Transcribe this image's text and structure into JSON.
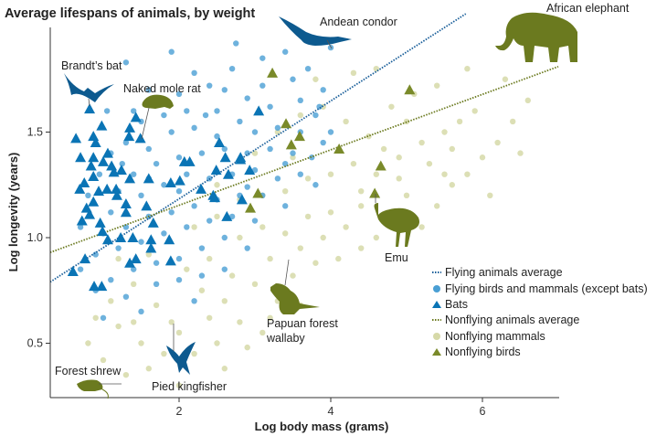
{
  "chart_data": {
    "type": "scatter",
    "title": "Average lifespans of animals, by weight",
    "xlabel": "Log body mass (grams)",
    "ylabel": "Log longevity (years)",
    "xlim": [
      0.3,
      7.0
    ],
    "ylim": [
      0.24,
      2.0
    ],
    "x_ticks": [
      "2",
      "4",
      "6"
    ],
    "x_tick_values": [
      2,
      4,
      6
    ],
    "y_ticks": [
      "0.5",
      "1.0",
      "1.5"
    ],
    "y_tick_values": [
      0.5,
      1.0,
      1.5
    ],
    "grid": false,
    "legend_position": "right",
    "colors": {
      "flying_dot": "#4a9fd4",
      "bat": "#0a74b5",
      "flying_line": "#1a5f9a",
      "nonflying_dot": "#d6d9a8",
      "nonflying_bird": "#7a8a2a",
      "nonflying_line": "#6b7a1f",
      "silhouette_blue": "#0d5a8f",
      "silhouette_olive": "#6b7a1f"
    },
    "lines": [
      {
        "name": "Flying animals average",
        "x": [
          0.3,
          5.78
        ],
        "y": [
          0.79,
          2.06
        ]
      },
      {
        "name": "Nonflying animals average",
        "x": [
          0.3,
          7.0
        ],
        "y": [
          0.93,
          1.81
        ]
      }
    ],
    "series": [
      {
        "name": "Flying birds and mammals (except bats)",
        "marker": "circle",
        "points": [
          [
            1.3,
            1.83
          ],
          [
            1.6,
            1.7
          ],
          [
            1.9,
            1.88
          ],
          [
            2.2,
            1.78
          ],
          [
            2.4,
            1.72
          ],
          [
            2.7,
            1.8
          ],
          [
            3.1,
            1.85
          ],
          [
            3.4,
            1.88
          ],
          [
            3.7,
            1.8
          ],
          [
            3.9,
            1.7
          ],
          [
            3.6,
            1.65
          ],
          [
            3.2,
            1.62
          ],
          [
            2.9,
            1.66
          ],
          [
            2.5,
            1.6
          ],
          [
            2.1,
            1.6
          ],
          [
            1.8,
            1.58
          ],
          [
            1.5,
            1.55
          ],
          [
            1.3,
            1.45
          ],
          [
            1.6,
            1.42
          ],
          [
            1.9,
            1.5
          ],
          [
            2.2,
            1.52
          ],
          [
            2.5,
            1.48
          ],
          [
            2.8,
            1.55
          ],
          [
            3.0,
            1.5
          ],
          [
            3.3,
            1.52
          ],
          [
            3.6,
            1.5
          ],
          [
            3.8,
            1.58
          ],
          [
            3.9,
            1.45
          ],
          [
            3.5,
            1.4
          ],
          [
            3.2,
            1.42
          ],
          [
            2.9,
            1.4
          ],
          [
            2.6,
            1.42
          ],
          [
            2.3,
            1.4
          ],
          [
            2.0,
            1.38
          ],
          [
            1.7,
            1.35
          ],
          [
            1.4,
            1.3
          ],
          [
            1.2,
            1.22
          ],
          [
            1.5,
            1.2
          ],
          [
            1.8,
            1.25
          ],
          [
            2.1,
            1.3
          ],
          [
            2.4,
            1.28
          ],
          [
            2.7,
            1.3
          ],
          [
            3.0,
            1.32
          ],
          [
            3.3,
            1.28
          ],
          [
            3.6,
            1.3
          ],
          [
            3.1,
            1.2
          ],
          [
            2.8,
            1.2
          ],
          [
            2.5,
            1.18
          ],
          [
            2.2,
            1.15
          ],
          [
            1.9,
            1.12
          ],
          [
            1.6,
            1.1
          ],
          [
            1.3,
            1.05
          ],
          [
            1.0,
            1.02
          ],
          [
            0.9,
            0.92
          ],
          [
            1.2,
            0.95
          ],
          [
            1.5,
            0.98
          ],
          [
            1.8,
            1.02
          ],
          [
            2.1,
            1.05
          ],
          [
            2.4,
            1.08
          ],
          [
            2.7,
            1.1
          ],
          [
            3.0,
            1.08
          ],
          [
            3.4,
            1.15
          ],
          [
            3.8,
            1.25
          ],
          [
            2.6,
            1.0
          ],
          [
            2.3,
            0.95
          ],
          [
            2.0,
            0.9
          ],
          [
            1.7,
            0.88
          ],
          [
            1.4,
            0.85
          ],
          [
            1.1,
            0.8
          ],
          [
            0.9,
            0.75
          ],
          [
            1.3,
            0.72
          ],
          [
            1.7,
            0.78
          ],
          [
            2.0,
            0.8
          ],
          [
            2.3,
            0.82
          ],
          [
            2.6,
            0.85
          ],
          [
            2.9,
            0.95
          ],
          [
            1.0,
            0.62
          ],
          [
            1.5,
            0.65
          ],
          [
            2.2,
            0.7
          ],
          [
            1.1,
            1.12
          ],
          [
            0.7,
            1.05
          ],
          [
            0.8,
            1.2
          ],
          [
            0.7,
            0.85
          ],
          [
            2.0,
            1.68
          ],
          [
            2.6,
            1.7
          ],
          [
            3.5,
            1.75
          ],
          [
            3.85,
            1.62
          ],
          [
            4.0,
            1.5
          ],
          [
            3.75,
            1.38
          ],
          [
            1.4,
            1.6
          ],
          [
            1.1,
            1.4
          ],
          [
            1.05,
            1.6
          ],
          [
            2.35,
            1.58
          ],
          [
            2.9,
            1.24
          ],
          [
            3.4,
            1.35
          ],
          [
            1.6,
            1.28
          ],
          [
            1.25,
            1.35
          ],
          [
            2.0,
            1.22
          ],
          [
            0.95,
            1.3
          ],
          [
            3.1,
            1.72
          ],
          [
            2.75,
            1.92
          ],
          [
            4.0,
            1.9
          ]
        ]
      },
      {
        "name": "Bats",
        "marker": "triangle",
        "points": [
          [
            0.82,
            1.61
          ],
          [
            0.98,
            1.53
          ],
          [
            0.64,
            1.47
          ],
          [
            0.87,
            1.48
          ],
          [
            0.9,
            1.45
          ],
          [
            1.43,
            1.57
          ],
          [
            1.35,
            1.52
          ],
          [
            1.34,
            1.48
          ],
          [
            1.49,
            1.47
          ],
          [
            0.7,
            1.38
          ],
          [
            0.87,
            1.38
          ],
          [
            1.06,
            1.4
          ],
          [
            1.0,
            1.36
          ],
          [
            0.84,
            1.34
          ],
          [
            1.11,
            1.34
          ],
          [
            1.24,
            1.32
          ],
          [
            1.14,
            1.31
          ],
          [
            0.87,
            1.29
          ],
          [
            0.75,
            1.26
          ],
          [
            1.35,
            1.28
          ],
          [
            1.6,
            1.28
          ],
          [
            0.69,
            1.23
          ],
          [
            0.94,
            1.22
          ],
          [
            1.05,
            1.23
          ],
          [
            1.17,
            1.23
          ],
          [
            1.18,
            1.2
          ],
          [
            1.89,
            1.26
          ],
          [
            2.01,
            1.27
          ],
          [
            0.87,
            1.17
          ],
          [
            1.3,
            1.16
          ],
          [
            0.78,
            1.14
          ],
          [
            1.57,
            1.15
          ],
          [
            0.82,
            1.11
          ],
          [
            0.72,
            1.08
          ],
          [
            1.3,
            1.12
          ],
          [
            0.96,
            1.07
          ],
          [
            1.66,
            1.07
          ],
          [
            0.99,
            1.03
          ],
          [
            1.23,
            1.0
          ],
          [
            1.39,
            1.0
          ],
          [
            1.63,
            0.99
          ],
          [
            1.87,
            0.99
          ],
          [
            1.06,
            0.99
          ],
          [
            1.63,
            0.95
          ],
          [
            0.76,
            0.9
          ],
          [
            1.35,
            0.88
          ],
          [
            1.43,
            0.9
          ],
          [
            1.89,
            0.89
          ],
          [
            0.6,
            0.84
          ],
          [
            0.88,
            0.77
          ],
          [
            0.98,
            0.77
          ],
          [
            2.07,
            1.36
          ],
          [
            2.14,
            1.36
          ],
          [
            2.53,
            1.45
          ],
          [
            2.49,
            1.32
          ],
          [
            2.65,
            1.3
          ],
          [
            2.81,
            1.37
          ],
          [
            2.93,
            1.32
          ],
          [
            3.05,
            1.6
          ],
          [
            2.29,
            1.23
          ],
          [
            2.47,
            1.19
          ],
          [
            2.83,
            1.18
          ],
          [
            2.63,
            1.1
          ],
          [
            2.61,
            1.38
          ],
          [
            2.81,
            1.38
          ],
          [
            2.45,
            1.2
          ]
        ]
      },
      {
        "name": "Nonflying mammals",
        "marker": "circle",
        "points": [
          [
            0.8,
            0.5
          ],
          [
            1.0,
            0.42
          ],
          [
            1.2,
            0.58
          ],
          [
            1.3,
            0.35
          ],
          [
            1.5,
            0.5
          ],
          [
            1.6,
            0.38
          ],
          [
            1.8,
            0.45
          ],
          [
            1.9,
            0.6
          ],
          [
            1.1,
            0.7
          ],
          [
            1.4,
            0.78
          ],
          [
            1.7,
            0.68
          ],
          [
            2.0,
            0.55
          ],
          [
            2.2,
            0.45
          ],
          [
            2.4,
            0.62
          ],
          [
            2.3,
            0.75
          ],
          [
            2.6,
            0.7
          ],
          [
            2.8,
            0.6
          ],
          [
            2.9,
            0.48
          ],
          [
            3.1,
            0.55
          ],
          [
            2.5,
            0.5
          ],
          [
            2.1,
            0.85
          ],
          [
            2.4,
            0.9
          ],
          [
            2.7,
            0.82
          ],
          [
            3.0,
            0.78
          ],
          [
            3.2,
            0.9
          ],
          [
            3.3,
            0.7
          ],
          [
            3.5,
            0.82
          ],
          [
            3.6,
            0.95
          ],
          [
            3.8,
            0.88
          ],
          [
            3.9,
            1.0
          ],
          [
            2.8,
            1.0
          ],
          [
            3.1,
            1.05
          ],
          [
            3.4,
            1.02
          ],
          [
            3.7,
            1.1
          ],
          [
            4.0,
            1.12
          ],
          [
            4.2,
            1.05
          ],
          [
            4.4,
            1.15
          ],
          [
            4.6,
            1.0
          ],
          [
            4.8,
            1.1
          ],
          [
            5.0,
            1.2
          ],
          [
            5.2,
            1.05
          ],
          [
            5.4,
            1.15
          ],
          [
            5.6,
            1.25
          ],
          [
            5.8,
            1.3
          ],
          [
            6.0,
            1.38
          ],
          [
            6.2,
            1.45
          ],
          [
            6.4,
            1.55
          ],
          [
            6.6,
            1.65
          ],
          [
            6.3,
            1.75
          ],
          [
            5.9,
            1.6
          ],
          [
            5.5,
            1.5
          ],
          [
            5.2,
            1.45
          ],
          [
            4.9,
            1.38
          ],
          [
            4.6,
            1.3
          ],
          [
            4.3,
            1.35
          ],
          [
            4.0,
            1.3
          ],
          [
            3.7,
            1.28
          ],
          [
            3.4,
            1.22
          ],
          [
            3.1,
            1.2
          ],
          [
            2.8,
            1.18
          ],
          [
            2.5,
            1.1
          ],
          [
            2.2,
            1.05
          ],
          [
            3.0,
            1.4
          ],
          [
            3.3,
            1.5
          ],
          [
            3.6,
            1.58
          ],
          [
            3.9,
            1.62
          ],
          [
            4.2,
            1.55
          ],
          [
            4.5,
            1.48
          ],
          [
            4.8,
            1.62
          ],
          [
            5.1,
            1.68
          ],
          [
            5.4,
            1.72
          ],
          [
            5.8,
            1.8
          ],
          [
            4.3,
            1.78
          ],
          [
            3.8,
            1.75
          ],
          [
            4.6,
            1.8
          ],
          [
            5.0,
            1.55
          ],
          [
            5.6,
            1.42
          ],
          [
            6.1,
            1.2
          ],
          [
            4.1,
            0.9
          ],
          [
            4.4,
            0.95
          ],
          [
            2.0,
            0.3
          ],
          [
            1.6,
            0.92
          ],
          [
            1.2,
            0.9
          ],
          [
            2.6,
            0.38
          ],
          [
            3.2,
            0.62
          ],
          [
            3.6,
            0.68
          ],
          [
            4.9,
            1.28
          ],
          [
            5.3,
            1.35
          ],
          [
            5.7,
            1.55
          ],
          [
            6.5,
            1.4
          ],
          [
            2.5,
            1.25
          ],
          [
            3.5,
            1.38
          ],
          [
            4.7,
            1.42
          ],
          [
            5.5,
            1.3
          ],
          [
            4.4,
            1.22
          ],
          [
            0.9,
            0.62
          ],
          [
            1.4,
            0.6
          ]
        ]
      },
      {
        "name": "Nonflying birds",
        "marker": "triangle",
        "points": [
          [
            3.23,
            1.78
          ],
          [
            5.04,
            1.7
          ],
          [
            3.41,
            1.54
          ],
          [
            3.59,
            1.48
          ],
          [
            3.48,
            1.44
          ],
          [
            4.11,
            1.42
          ],
          [
            4.66,
            1.34
          ],
          [
            4.58,
            1.21
          ],
          [
            3.04,
            1.21
          ],
          [
            2.94,
            1.14
          ]
        ]
      }
    ],
    "annotations": {
      "elephant": "African elephant",
      "condor": "Andean condor",
      "bat": "Brandt’s bat",
      "molerat": "Naked mole rat",
      "emu": "Emu",
      "wallaby_1": "Papuan forest",
      "wallaby_2": "wallaby",
      "shrew": "Forest shrew",
      "kingfisher": "Pied kingfisher"
    }
  }
}
